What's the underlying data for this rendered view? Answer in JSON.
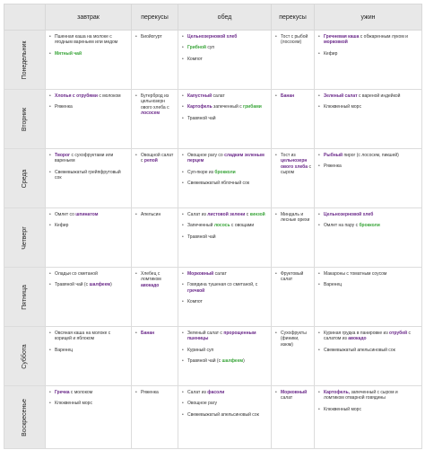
{
  "headers": [
    "",
    "завтрак",
    "перекусы",
    "обед",
    "перекусы",
    "ужин"
  ],
  "days": [
    {
      "name": "Понедельник",
      "cells": [
        [
          [
            {
              "t": "Пшенная каша на молоке с ягодным вареньем или медом"
            }
          ],
          [
            {
              "t": "Мятный чай",
              "c": "green"
            }
          ]
        ],
        [
          [
            {
              "t": "Биойогурт"
            }
          ]
        ],
        [
          [
            {
              "t": "Цельнозерновой хлеб",
              "c": "purple"
            }
          ],
          [
            {
              "t": "Грибной",
              "c": "green"
            },
            {
              "t": " суп"
            }
          ],
          [
            {
              "t": "Компот"
            }
          ]
        ],
        [
          [
            {
              "t": "Тост с рыбой (лососем)"
            }
          ]
        ],
        [
          [
            {
              "t": "Гречневая каша",
              "c": "purple"
            },
            {
              "t": " с обжаренным луком и "
            },
            {
              "t": "морковкой",
              "c": "purple"
            }
          ],
          [
            {
              "t": "Кефир"
            }
          ]
        ]
      ]
    },
    {
      "name": "Вторник",
      "cells": [
        [
          [
            {
              "t": "Хлопья с отрубями",
              "c": "purple"
            },
            {
              "t": " с молоком"
            }
          ],
          [
            {
              "t": "Ряженка"
            }
          ]
        ],
        [
          [
            {
              "t": "Бутерброд из цельнозерн ового хлеба с "
            },
            {
              "t": "лососем",
              "c": "purple"
            }
          ]
        ],
        [
          [
            {
              "t": "Капустный",
              "c": "purple"
            },
            {
              "t": " салат"
            }
          ],
          [
            {
              "t": "Картофель",
              "c": "purple"
            },
            {
              "t": " запеченный с "
            },
            {
              "t": "грибами",
              "c": "green"
            }
          ],
          [
            {
              "t": "Травяной чай"
            }
          ]
        ],
        [
          [
            {
              "t": "Банан",
              "c": "purple"
            }
          ]
        ],
        [
          [
            {
              "t": "Зеленый салат",
              "c": "purple"
            },
            {
              "t": " с вареной индейкой"
            }
          ],
          [
            {
              "t": "Клюквенный морс"
            }
          ]
        ]
      ]
    },
    {
      "name": "Среда",
      "cells": [
        [
          [
            {
              "t": "Творог",
              "c": "purple"
            },
            {
              "t": " с сухофруктами или вареньем"
            }
          ],
          [
            {
              "t": "Свежевыжатый грейпфрутовый сок"
            }
          ]
        ],
        [
          [
            {
              "t": "Овощной салат с "
            },
            {
              "t": "репой",
              "c": "purple"
            }
          ]
        ],
        [
          [
            {
              "t": "Овощное рагу со "
            },
            {
              "t": "сладким зеленым перцем",
              "c": "purple"
            }
          ],
          [
            {
              "t": "Суп-пюре из "
            },
            {
              "t": "брокколи",
              "c": "green"
            }
          ],
          [
            {
              "t": "Свежевыжатый яблочный сок"
            }
          ]
        ],
        [
          [
            {
              "t": "Тост из "
            },
            {
              "t": "цельнозерн ового хлеба",
              "c": "purple"
            },
            {
              "t": " с сыром"
            }
          ]
        ],
        [
          [
            {
              "t": "Рыбный",
              "c": "purple"
            },
            {
              "t": " пирог (с лососем, пикшей)"
            }
          ],
          [
            {
              "t": "Ряженка"
            }
          ]
        ]
      ]
    },
    {
      "name": "Четверг",
      "cells": [
        [
          [
            {
              "t": "Омлет со "
            },
            {
              "t": "шпинатом",
              "c": "purple"
            }
          ],
          [
            {
              "t": "Кефир"
            }
          ]
        ],
        [
          [
            {
              "t": "Апельсин"
            }
          ]
        ],
        [
          [
            {
              "t": "Салат из "
            },
            {
              "t": "листовой зелени",
              "c": "purple"
            },
            {
              "t": " с "
            },
            {
              "t": "кинзой",
              "c": "green"
            }
          ],
          [
            {
              "t": "Запеченный "
            },
            {
              "t": "лосось",
              "c": "green"
            },
            {
              "t": " с овощами"
            }
          ],
          [
            {
              "t": "Травяной чай"
            }
          ]
        ],
        [
          [
            {
              "t": "Миндаль и лесные орехи"
            }
          ]
        ],
        [
          [
            {
              "t": "Цельнозерновой хлеб",
              "c": "purple"
            }
          ],
          [
            {
              "t": "Омлет на пару с "
            },
            {
              "t": "брокколи",
              "c": "green"
            }
          ]
        ]
      ]
    },
    {
      "name": "Пятница",
      "cells": [
        [
          [
            {
              "t": "Оладьи со сметаной"
            }
          ],
          [
            {
              "t": "Травяной чай (с "
            },
            {
              "t": "шалфеем",
              "c": "purple"
            },
            {
              "t": ")"
            }
          ]
        ],
        [
          [
            {
              "t": "Хлебец с ломтиком "
            },
            {
              "t": "авокадо",
              "c": "purple"
            }
          ]
        ],
        [
          [
            {
              "t": "Морковный",
              "c": "purple"
            },
            {
              "t": " салат"
            }
          ],
          [
            {
              "t": "Говядина тушеная со сметаной, с "
            },
            {
              "t": "гречкой",
              "c": "purple"
            }
          ],
          [
            {
              "t": "Компот"
            }
          ]
        ],
        [
          [
            {
              "t": "Фруктовый салат"
            }
          ]
        ],
        [
          [
            {
              "t": "Макароны с томатным соусом"
            }
          ],
          [
            {
              "t": "Варенец"
            }
          ]
        ]
      ]
    },
    {
      "name": "Суббота",
      "cells": [
        [
          [
            {
              "t": "Овсяная каша на молоке с корицей и яблоком"
            }
          ],
          [
            {
              "t": "Варенец"
            }
          ]
        ],
        [
          [
            {
              "t": "Банан",
              "c": "purple"
            }
          ]
        ],
        [
          [
            {
              "t": "Зеленый салат с "
            },
            {
              "t": "пророщенным пшеницы",
              "c": "purple"
            }
          ],
          [
            {
              "t": "Куриный суп"
            }
          ],
          [
            {
              "t": "Травяной чай (с "
            },
            {
              "t": "шалфеем",
              "c": "green"
            },
            {
              "t": ")"
            }
          ]
        ],
        [
          [
            {
              "t": "Сухофрукты (финики, изюм)"
            }
          ]
        ],
        [
          [
            {
              "t": "Куриная грудка в панировке из "
            },
            {
              "t": "отрубей",
              "c": "purple"
            },
            {
              "t": " с салатом из "
            },
            {
              "t": "авокадо",
              "c": "purple"
            }
          ],
          [
            {
              "t": "Свежевыжатый апельсиновый сок"
            }
          ]
        ]
      ]
    },
    {
      "name": "Воскресенье",
      "cells": [
        [
          [
            {
              "t": "Гречка",
              "c": "purple"
            },
            {
              "t": " с молоком"
            }
          ],
          [
            {
              "t": "Клюквенный морс"
            }
          ]
        ],
        [
          [
            {
              "t": "Ряженка"
            }
          ]
        ],
        [
          [
            {
              "t": "Салат из "
            },
            {
              "t": "фасоли",
              "c": "purple"
            }
          ],
          [
            {
              "t": "Овощное рагу"
            }
          ],
          [
            {
              "t": "Свежевыжатый апельсиновый сок"
            }
          ]
        ],
        [
          [
            {
              "t": "Морковный",
              "c": "purple"
            },
            {
              "t": " салат"
            }
          ]
        ],
        [
          [
            {
              "t": "Картофель,",
              "c": "purple"
            },
            {
              "t": " запеченный с сыром и ломтиком отварной говядины"
            }
          ],
          [
            {
              "t": "Клюквенный морс"
            }
          ]
        ]
      ]
    }
  ],
  "colors": {
    "purple": "#6b2a8a",
    "green": "#3aa53a"
  }
}
